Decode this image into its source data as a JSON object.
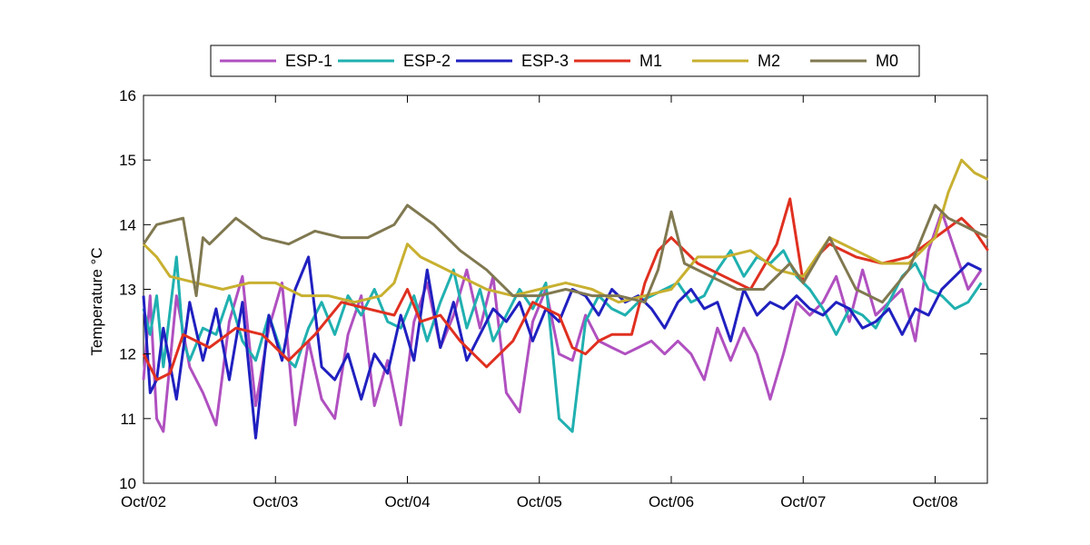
{
  "chart_data": {
    "type": "line",
    "title": "",
    "xlabel": "",
    "ylabel": "Temperature °C",
    "xlim": [
      "2007-10-02",
      "2007-10-08T09:30"
    ],
    "ylim": [
      10,
      16
    ],
    "yticks": [
      10,
      11,
      12,
      13,
      14,
      15,
      16
    ],
    "xticks": [
      {
        "value": "2007-10-02",
        "label": "Oct/02"
      },
      {
        "value": "2007-10-03",
        "label": "Oct/03"
      },
      {
        "value": "2007-10-04",
        "label": "Oct/04"
      },
      {
        "value": "2007-10-05",
        "label": "Oct/05"
      },
      {
        "value": "2007-10-06",
        "label": "Oct/06"
      },
      {
        "value": "2007-10-07",
        "label": "Oct/07"
      },
      {
        "value": "2007-10-08",
        "label": "Oct/08"
      }
    ],
    "grid": false,
    "legend_position": "top-outside",
    "series": [
      {
        "name": "ESP-1",
        "color": "#b050c0",
        "x": [
          "2007-10-02T00:00",
          "2007-10-02T01:12",
          "2007-10-02T02:24",
          "2007-10-02T03:36",
          "2007-10-02T06:00",
          "2007-10-02T08:24",
          "2007-10-02T10:48",
          "2007-10-02T13:12",
          "2007-10-02T15:36",
          "2007-10-02T18:00",
          "2007-10-02T20:24",
          "2007-10-02T22:48",
          "2007-10-03T01:12",
          "2007-10-03T03:36",
          "2007-10-03T06:00",
          "2007-10-03T08:24",
          "2007-10-03T10:48",
          "2007-10-03T13:12",
          "2007-10-03T15:36",
          "2007-10-03T18:00",
          "2007-10-03T20:24",
          "2007-10-03T22:48",
          "2007-10-04T01:12",
          "2007-10-04T03:36",
          "2007-10-04T06:00",
          "2007-10-04T08:24",
          "2007-10-04T10:48",
          "2007-10-04T13:12",
          "2007-10-04T15:36",
          "2007-10-04T18:00",
          "2007-10-04T20:24",
          "2007-10-04T22:48",
          "2007-10-05T01:12",
          "2007-10-05T03:36",
          "2007-10-05T06:00",
          "2007-10-05T08:24",
          "2007-10-05T10:48",
          "2007-10-05T13:12",
          "2007-10-05T15:36",
          "2007-10-05T18:00",
          "2007-10-05T20:24",
          "2007-10-05T22:48",
          "2007-10-06T01:12",
          "2007-10-06T03:36",
          "2007-10-06T06:00",
          "2007-10-06T08:24",
          "2007-10-06T10:48",
          "2007-10-06T13:12",
          "2007-10-06T15:36",
          "2007-10-06T18:00",
          "2007-10-06T20:24",
          "2007-10-06T22:48",
          "2007-10-07T01:12",
          "2007-10-07T03:36",
          "2007-10-07T06:00",
          "2007-10-07T08:24",
          "2007-10-07T10:48",
          "2007-10-07T13:12",
          "2007-10-07T15:36",
          "2007-10-07T18:00",
          "2007-10-07T20:24",
          "2007-10-07T22:48",
          "2007-10-08T01:12",
          "2007-10-08T03:36",
          "2007-10-08T06:00",
          "2007-10-08T08:24"
        ],
        "y": [
          11.6,
          12.9,
          11.0,
          10.8,
          12.9,
          11.8,
          11.4,
          10.9,
          12.5,
          13.2,
          11.2,
          12.4,
          13.1,
          10.9,
          12.2,
          11.3,
          11.0,
          12.3,
          12.9,
          11.2,
          11.9,
          10.9,
          12.5,
          13.1,
          12.1,
          12.6,
          13.3,
          12.4,
          13.2,
          11.4,
          11.1,
          12.5,
          13.0,
          12.0,
          11.9,
          12.6,
          12.2,
          12.1,
          12.0,
          12.1,
          12.2,
          12.0,
          12.2,
          12.0,
          11.6,
          12.4,
          11.9,
          12.4,
          12.0,
          11.3,
          12.0,
          12.8,
          12.6,
          12.8,
          13.2,
          12.5,
          13.3,
          12.6,
          12.8,
          13.0,
          12.2,
          13.6,
          14.2,
          13.6,
          13.0,
          13.3
        ],
        "linewidth": 3
      },
      {
        "name": "ESP-2",
        "color": "#20b0b0",
        "x": [
          "2007-10-02T00:00",
          "2007-10-02T01:12",
          "2007-10-02T02:24",
          "2007-10-02T03:36",
          "2007-10-02T06:00",
          "2007-10-02T07:12",
          "2007-10-02T08:24",
          "2007-10-02T10:48",
          "2007-10-02T13:12",
          "2007-10-02T15:36",
          "2007-10-02T18:00",
          "2007-10-02T20:24",
          "2007-10-02T22:48",
          "2007-10-03T01:12",
          "2007-10-03T03:36",
          "2007-10-03T06:00",
          "2007-10-03T08:24",
          "2007-10-03T10:48",
          "2007-10-03T13:12",
          "2007-10-03T15:36",
          "2007-10-03T18:00",
          "2007-10-03T20:24",
          "2007-10-03T22:48",
          "2007-10-04T01:12",
          "2007-10-04T03:36",
          "2007-10-04T06:00",
          "2007-10-04T08:24",
          "2007-10-04T10:48",
          "2007-10-04T13:12",
          "2007-10-04T15:36",
          "2007-10-04T18:00",
          "2007-10-04T20:24",
          "2007-10-04T22:48",
          "2007-10-05T01:12",
          "2007-10-05T03:36",
          "2007-10-05T06:00",
          "2007-10-05T08:24",
          "2007-10-05T10:48",
          "2007-10-05T13:12",
          "2007-10-05T15:36",
          "2007-10-05T18:00",
          "2007-10-05T20:24",
          "2007-10-05T22:48",
          "2007-10-06T01:12",
          "2007-10-06T03:36",
          "2007-10-06T06:00",
          "2007-10-06T08:24",
          "2007-10-06T10:48",
          "2007-10-06T13:12",
          "2007-10-06T15:36",
          "2007-10-06T18:00",
          "2007-10-06T20:24",
          "2007-10-06T22:48",
          "2007-10-07T01:12",
          "2007-10-07T03:36",
          "2007-10-07T06:00",
          "2007-10-07T08:24",
          "2007-10-07T10:48",
          "2007-10-07T13:12",
          "2007-10-07T15:36",
          "2007-10-07T18:00",
          "2007-10-07T20:24",
          "2007-10-07T22:48",
          "2007-10-08T01:12",
          "2007-10-08T03:36",
          "2007-10-08T06:00",
          "2007-10-08T08:24"
        ],
        "y": [
          12.7,
          12.3,
          12.9,
          11.8,
          13.5,
          12.2,
          11.9,
          12.4,
          12.3,
          12.9,
          12.2,
          11.9,
          12.6,
          12.0,
          11.8,
          12.4,
          12.8,
          12.3,
          12.9,
          12.6,
          13.0,
          12.5,
          12.4,
          12.9,
          12.2,
          12.8,
          13.3,
          12.4,
          13.0,
          12.2,
          12.6,
          13.0,
          12.7,
          13.1,
          11.0,
          10.8,
          12.5,
          12.9,
          12.7,
          12.6,
          12.8,
          12.9,
          13.0,
          13.1,
          12.8,
          12.9,
          13.3,
          13.6,
          13.2,
          13.5,
          13.4,
          13.6,
          13.2,
          13.0,
          12.7,
          12.3,
          12.7,
          12.6,
          12.4,
          12.8,
          13.2,
          13.4,
          13.0,
          12.9,
          12.7,
          12.8,
          13.1
        ],
        "linewidth": 3
      },
      {
        "name": "ESP-3",
        "color": "#2020c0",
        "x": [
          "2007-10-02T00:00",
          "2007-10-02T01:12",
          "2007-10-02T02:24",
          "2007-10-02T03:36",
          "2007-10-02T06:00",
          "2007-10-02T08:24",
          "2007-10-02T10:48",
          "2007-10-02T13:12",
          "2007-10-02T15:36",
          "2007-10-02T18:00",
          "2007-10-02T20:24",
          "2007-10-02T22:48",
          "2007-10-03T01:12",
          "2007-10-03T03:36",
          "2007-10-03T06:00",
          "2007-10-03T08:24",
          "2007-10-03T10:48",
          "2007-10-03T13:12",
          "2007-10-03T15:36",
          "2007-10-03T18:00",
          "2007-10-03T20:24",
          "2007-10-03T22:48",
          "2007-10-04T01:12",
          "2007-10-04T03:36",
          "2007-10-04T06:00",
          "2007-10-04T08:24",
          "2007-10-04T10:48",
          "2007-10-04T13:12",
          "2007-10-04T15:36",
          "2007-10-04T18:00",
          "2007-10-04T20:24",
          "2007-10-04T22:48",
          "2007-10-05T01:12",
          "2007-10-05T03:36",
          "2007-10-05T06:00",
          "2007-10-05T08:24",
          "2007-10-05T10:48",
          "2007-10-05T13:12",
          "2007-10-05T15:36",
          "2007-10-05T18:00",
          "2007-10-05T20:24",
          "2007-10-05T22:48",
          "2007-10-06T01:12",
          "2007-10-06T03:36",
          "2007-10-06T06:00",
          "2007-10-06T08:24",
          "2007-10-06T10:48",
          "2007-10-06T13:12",
          "2007-10-06T15:36",
          "2007-10-06T18:00",
          "2007-10-06T20:24",
          "2007-10-06T22:48",
          "2007-10-07T01:12",
          "2007-10-07T03:36",
          "2007-10-07T06:00",
          "2007-10-07T08:24",
          "2007-10-07T10:48",
          "2007-10-07T13:12",
          "2007-10-07T15:36",
          "2007-10-07T18:00",
          "2007-10-07T20:24",
          "2007-10-07T22:48",
          "2007-10-08T01:12",
          "2007-10-08T03:36",
          "2007-10-08T06:00",
          "2007-10-08T08:24"
        ],
        "y": [
          12.9,
          11.4,
          11.6,
          12.4,
          11.3,
          12.8,
          11.9,
          12.7,
          11.6,
          12.8,
          10.7,
          12.6,
          11.9,
          13.0,
          13.5,
          11.8,
          11.6,
          12.0,
          11.3,
          12.0,
          11.7,
          12.6,
          11.9,
          13.3,
          12.1,
          12.8,
          11.9,
          12.3,
          12.7,
          12.5,
          12.8,
          12.2,
          12.7,
          12.5,
          13.0,
          12.9,
          12.6,
          13.0,
          12.8,
          12.9,
          12.7,
          12.4,
          12.8,
          13.0,
          12.7,
          12.8,
          12.2,
          13.0,
          12.6,
          12.8,
          12.7,
          12.9,
          12.7,
          12.6,
          12.8,
          12.7,
          12.4,
          12.5,
          12.7,
          12.3,
          12.7,
          12.6,
          13.0,
          13.2,
          13.4,
          13.3
        ],
        "linewidth": 3
      },
      {
        "name": "M1",
        "color": "#e03020",
        "x": [
          "2007-10-02T00:00",
          "2007-10-02T02:24",
          "2007-10-02T04:48",
          "2007-10-02T07:12",
          "2007-10-02T12:00",
          "2007-10-02T16:48",
          "2007-10-02T21:36",
          "2007-10-03T02:24",
          "2007-10-03T07:12",
          "2007-10-03T12:00",
          "2007-10-03T16:48",
          "2007-10-03T21:36",
          "2007-10-04T00:00",
          "2007-10-04T02:24",
          "2007-10-04T06:00",
          "2007-10-04T09:36",
          "2007-10-04T14:24",
          "2007-10-04T19:12",
          "2007-10-04T22:48",
          "2007-10-05T03:36",
          "2007-10-05T06:00",
          "2007-10-05T08:24",
          "2007-10-05T10:48",
          "2007-10-05T13:12",
          "2007-10-05T16:48",
          "2007-10-05T19:12",
          "2007-10-05T21:36",
          "2007-10-06T00:00",
          "2007-10-06T04:48",
          "2007-10-06T09:36",
          "2007-10-06T14:24",
          "2007-10-06T19:12",
          "2007-10-06T21:36",
          "2007-10-07T00:00",
          "2007-10-07T02:24",
          "2007-10-07T04:48",
          "2007-10-07T09:36",
          "2007-10-07T14:24",
          "2007-10-07T19:12",
          "2007-10-08T00:00",
          "2007-10-08T04:48",
          "2007-10-08T07:12",
          "2007-10-08T09:36"
        ],
        "y": [
          12.0,
          11.6,
          11.7,
          12.3,
          12.1,
          12.4,
          12.3,
          11.9,
          12.3,
          12.8,
          12.7,
          12.6,
          13.0,
          12.5,
          12.6,
          12.2,
          11.8,
          12.2,
          12.8,
          12.6,
          12.1,
          12.0,
          12.2,
          12.3,
          12.3,
          13.1,
          13.6,
          13.8,
          13.4,
          13.2,
          13.0,
          13.7,
          14.4,
          13.1,
          13.5,
          13.7,
          13.5,
          13.4,
          13.5,
          13.8,
          14.1,
          13.9,
          13.6
        ],
        "linewidth": 3
      },
      {
        "name": "M2",
        "color": "#c8b030",
        "x": [
          "2007-10-02T00:00",
          "2007-10-02T02:24",
          "2007-10-02T04:48",
          "2007-10-02T09:36",
          "2007-10-02T14:24",
          "2007-10-02T19:12",
          "2007-10-03T00:00",
          "2007-10-03T04:48",
          "2007-10-03T09:36",
          "2007-10-03T14:24",
          "2007-10-03T19:12",
          "2007-10-03T21:36",
          "2007-10-04T00:00",
          "2007-10-04T02:24",
          "2007-10-04T04:48",
          "2007-10-04T09:36",
          "2007-10-04T14:24",
          "2007-10-04T19:12",
          "2007-10-05T00:00",
          "2007-10-05T04:48",
          "2007-10-05T09:36",
          "2007-10-05T14:24",
          "2007-10-05T19:12",
          "2007-10-06T00:00",
          "2007-10-06T04:48",
          "2007-10-06T09:36",
          "2007-10-06T14:24",
          "2007-10-06T19:12",
          "2007-10-07T00:00",
          "2007-10-07T04:48",
          "2007-10-07T09:36",
          "2007-10-07T14:24",
          "2007-10-07T19:12",
          "2007-10-08T00:00",
          "2007-10-08T02:24",
          "2007-10-08T04:48",
          "2007-10-08T07:12",
          "2007-10-08T09:36"
        ],
        "y": [
          13.7,
          13.5,
          13.2,
          13.1,
          13.0,
          13.1,
          13.1,
          12.9,
          12.9,
          12.8,
          12.9,
          13.1,
          13.7,
          13.5,
          13.4,
          13.2,
          13.0,
          12.9,
          13.0,
          13.1,
          13.0,
          12.8,
          12.9,
          13.0,
          13.5,
          13.5,
          13.6,
          13.3,
          13.2,
          13.8,
          13.6,
          13.4,
          13.4,
          13.8,
          14.5,
          15.0,
          14.8,
          14.7
        ],
        "linewidth": 3
      },
      {
        "name": "M0",
        "color": "#807850",
        "x": [
          "2007-10-02T00:00",
          "2007-10-02T02:24",
          "2007-10-02T07:12",
          "2007-10-02T09:36",
          "2007-10-02T10:48",
          "2007-10-02T12:00",
          "2007-10-02T16:48",
          "2007-10-02T21:36",
          "2007-10-03T02:24",
          "2007-10-03T07:12",
          "2007-10-03T12:00",
          "2007-10-03T16:48",
          "2007-10-03T21:36",
          "2007-10-04T00:00",
          "2007-10-04T04:48",
          "2007-10-04T09:36",
          "2007-10-04T14:24",
          "2007-10-04T19:12",
          "2007-10-05T00:00",
          "2007-10-05T04:48",
          "2007-10-05T09:36",
          "2007-10-05T14:24",
          "2007-10-05T19:12",
          "2007-10-05T21:36",
          "2007-10-06T00:00",
          "2007-10-06T02:24",
          "2007-10-06T07:12",
          "2007-10-06T12:00",
          "2007-10-06T16:48",
          "2007-10-06T21:36",
          "2007-10-07T00:00",
          "2007-10-07T04:48",
          "2007-10-07T09:36",
          "2007-10-07T14:24",
          "2007-10-07T19:12",
          "2007-10-08T00:00",
          "2007-10-08T02:24",
          "2007-10-08T07:12",
          "2007-10-08T09:36"
        ],
        "y": [
          13.7,
          14.0,
          14.1,
          12.9,
          13.8,
          13.7,
          14.1,
          13.8,
          13.7,
          13.9,
          13.8,
          13.8,
          14.0,
          14.3,
          14.0,
          13.6,
          13.3,
          12.9,
          12.9,
          13.0,
          12.9,
          12.9,
          12.8,
          13.3,
          14.2,
          13.4,
          13.2,
          13.0,
          13.0,
          13.4,
          13.1,
          13.8,
          13.0,
          12.8,
          13.3,
          14.3,
          14.1,
          13.9,
          13.8
        ],
        "linewidth": 3
      }
    ]
  }
}
